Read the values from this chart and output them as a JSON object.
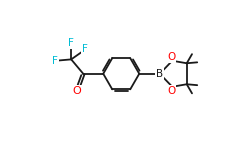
{
  "bg_color": "#ffffff",
  "bond_color": "#1a1a1a",
  "F_color": "#00bcd4",
  "O_color": "#ff0000",
  "B_color": "#1a1a1a",
  "bond_width": 1.3,
  "font_size_atom": 7.5,
  "xlim": [
    0,
    10
  ],
  "ylim": [
    0,
    6
  ],
  "figw": 2.5,
  "figh": 1.5,
  "dpi": 100
}
